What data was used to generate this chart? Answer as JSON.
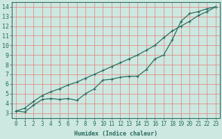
{
  "xlabel": "Humidex (Indice chaleur)",
  "ylabel": "",
  "xlim": [
    -0.5,
    23.5
  ],
  "ylim": [
    2.5,
    14.5
  ],
  "xticks": [
    0,
    1,
    2,
    3,
    4,
    5,
    6,
    7,
    8,
    9,
    10,
    11,
    12,
    13,
    14,
    15,
    16,
    17,
    18,
    19,
    20,
    21,
    22,
    23
  ],
  "yticks": [
    3,
    4,
    5,
    6,
    7,
    8,
    9,
    10,
    11,
    12,
    13,
    14
  ],
  "background_color": "#cce8e0",
  "line_color": "#2a6b5e",
  "grid_color_h": "#e87878",
  "grid_color_v": "#e87878",
  "line_upper_x": [
    0,
    1,
    2,
    3,
    4,
    5,
    6,
    7,
    8,
    9,
    10,
    11,
    12,
    13,
    14,
    15,
    16,
    17,
    18,
    19,
    20,
    21,
    22,
    23
  ],
  "line_upper_y": [
    3.2,
    3.5,
    4.2,
    4.8,
    5.2,
    5.5,
    5.9,
    6.2,
    6.6,
    7.0,
    7.4,
    7.8,
    8.2,
    8.6,
    9.0,
    9.5,
    10.0,
    10.8,
    11.5,
    12.0,
    12.5,
    13.1,
    13.5,
    14.0
  ],
  "line_lower_x": [
    0,
    1,
    2,
    3,
    4,
    5,
    6,
    7,
    8,
    9,
    10,
    11,
    12,
    13,
    14,
    15,
    16,
    17,
    18,
    19,
    20,
    21,
    22,
    23
  ],
  "line_lower_y": [
    3.2,
    3.1,
    3.8,
    4.4,
    4.5,
    4.4,
    4.5,
    4.3,
    5.0,
    5.5,
    6.4,
    6.5,
    6.7,
    6.8,
    6.8,
    7.5,
    8.6,
    9.0,
    10.6,
    12.5,
    13.3,
    13.5,
    13.8,
    14.0
  ],
  "xlabel_fontsize": 6,
  "tick_fontsize": 5.5
}
